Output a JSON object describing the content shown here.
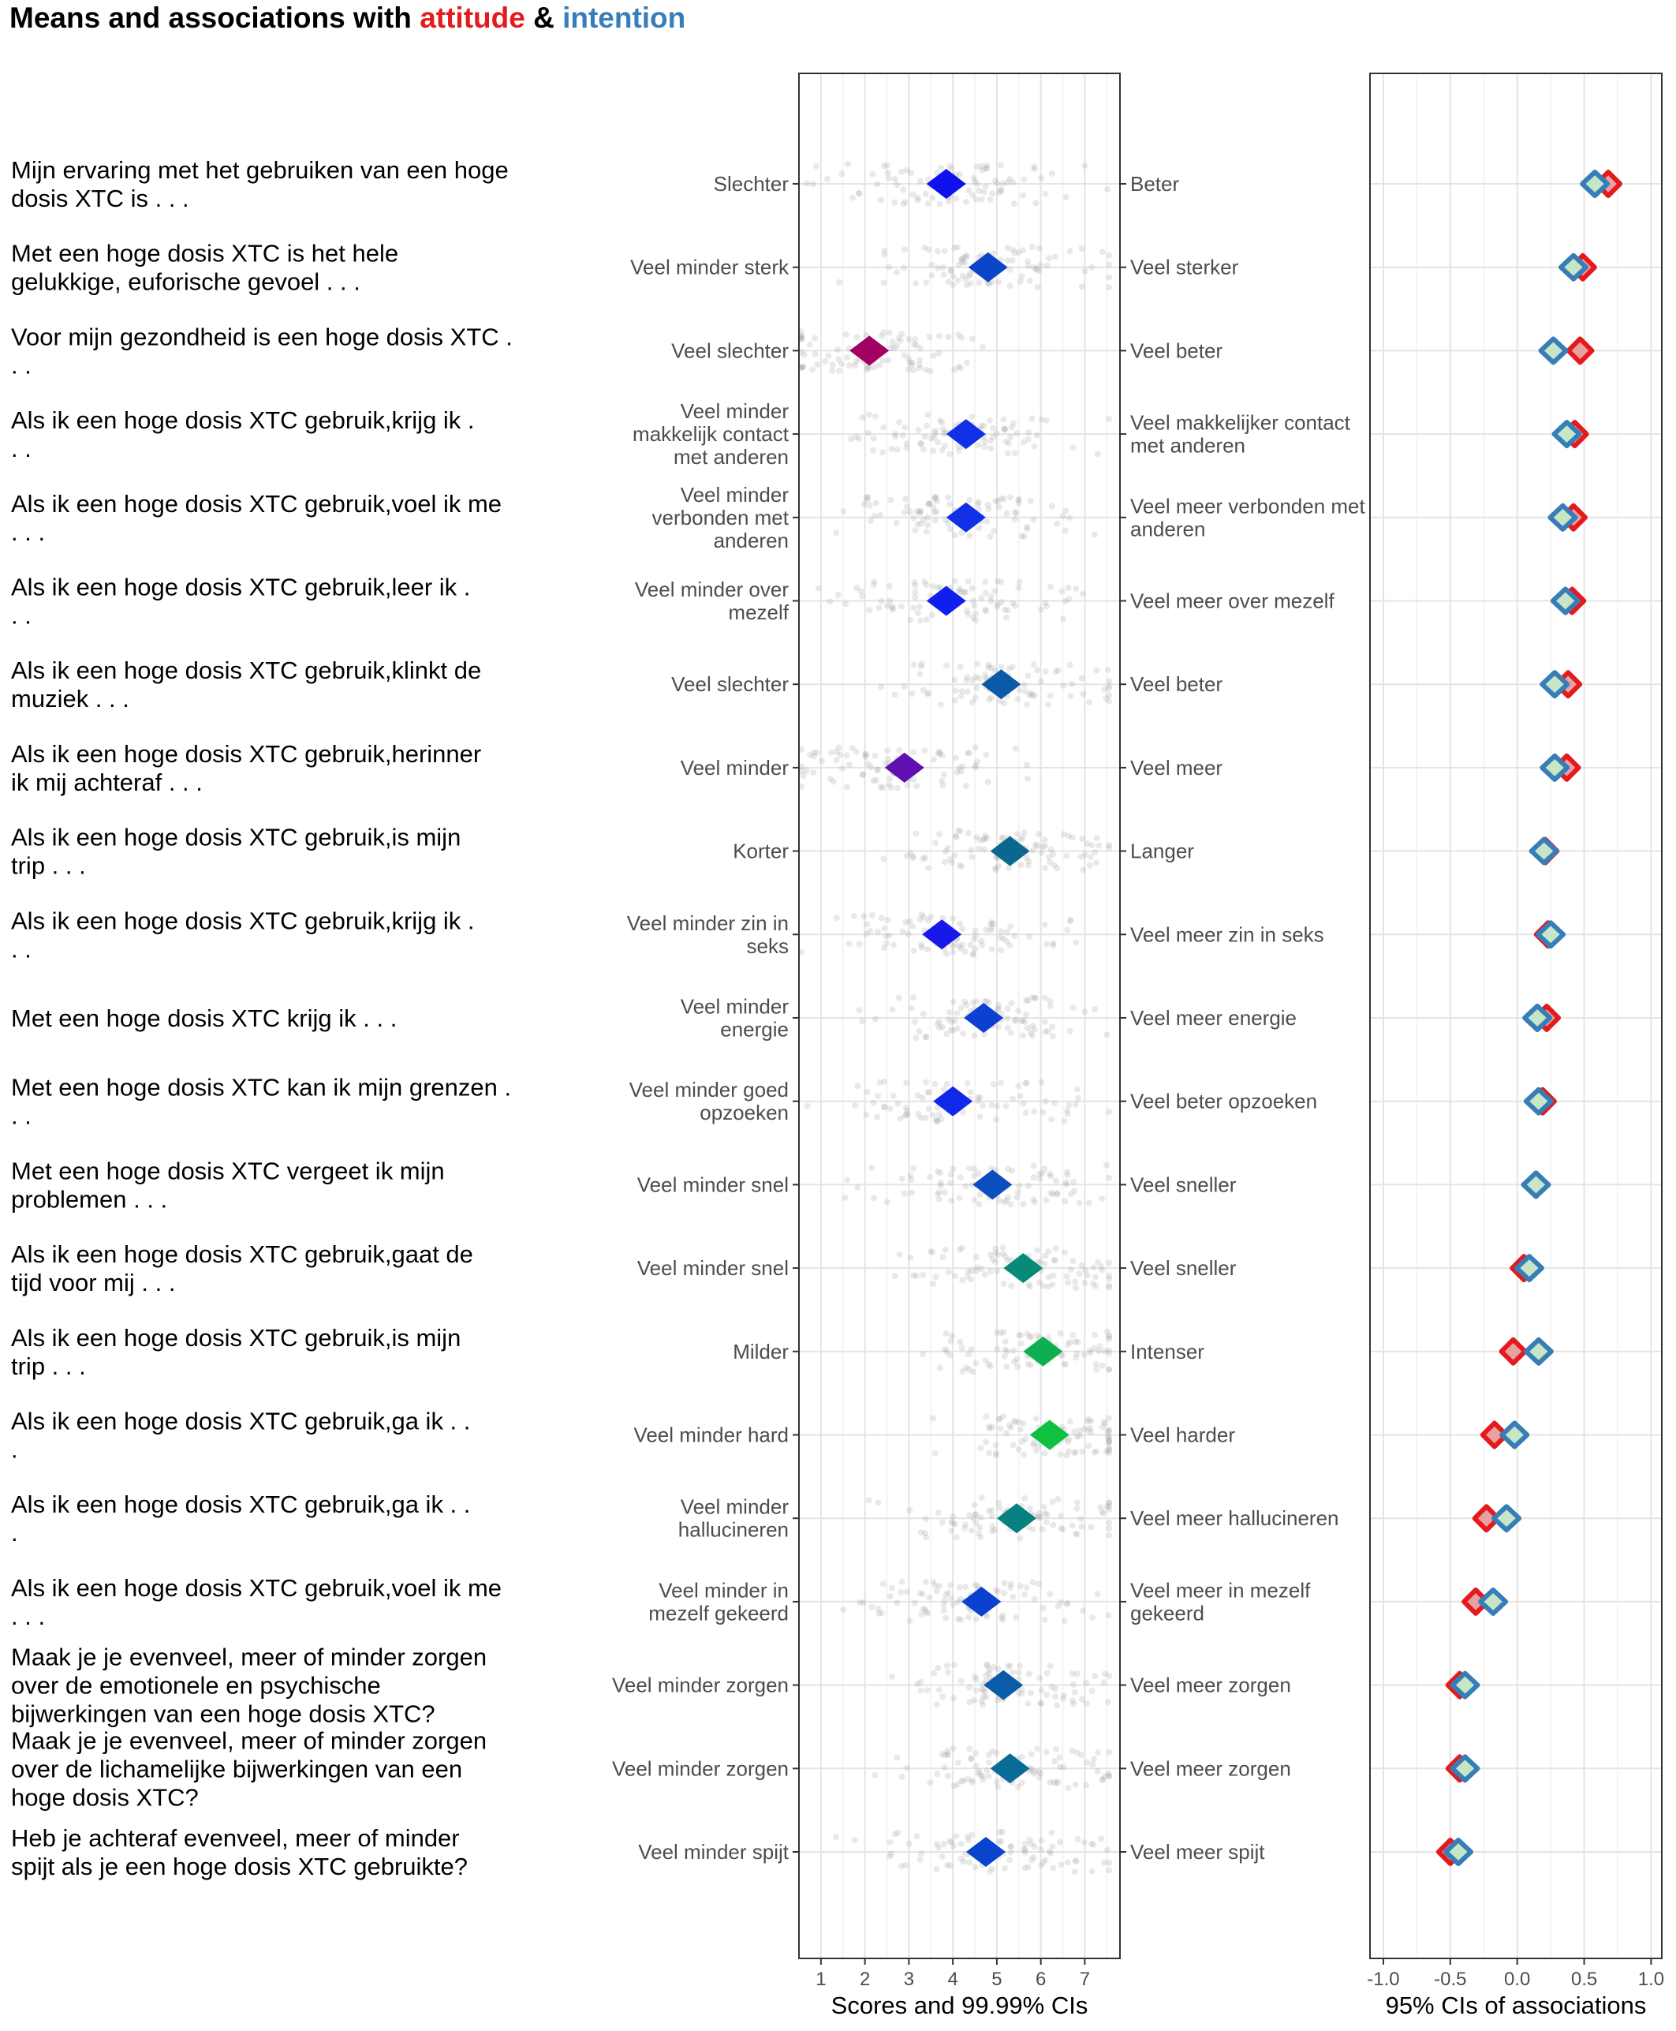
{
  "title": {
    "prefix": "Means and associations with ",
    "attitude": "attitude",
    "amp": " & ",
    "intention": "intention",
    "attitude_color": "#e41a1c",
    "intention_color": "#377eb8"
  },
  "chart_data": [
    {
      "type": "scatter",
      "panel": "scores",
      "xlabel": "Scores and 99.99% CIs",
      "xlim": [
        0.5,
        7.8
      ],
      "xticks": [
        1,
        2,
        3,
        4,
        5,
        6,
        7
      ],
      "grid": true,
      "items": [
        {
          "label": "Mijn ervaring met het gebruiken van een hoge dosis XTC is . . .",
          "left_anchor": "Slechter",
          "right_anchor": "Beter",
          "mean": 3.85,
          "color": "#1010ee"
        },
        {
          "label": "Met een hoge dosis XTC is het hele gelukkige, euforische gevoel . . .",
          "left_anchor": "Veel minder sterk",
          "right_anchor": "Veel sterker",
          "mean": 4.8,
          "color": "#0b46c8"
        },
        {
          "label": "Voor mijn gezondheid is een hoge dosis XTC . . .",
          "left_anchor": "Veel slechter",
          "right_anchor": "Veel beter",
          "mean": 2.1,
          "color": "#a00060"
        },
        {
          "label": "Als ik een hoge dosis XTC gebruik,krijg ik . . .",
          "left_anchor": "Veel minder makkelijk contact met anderen",
          "right_anchor": "Veel makkelijker contact met anderen",
          "mean": 4.3,
          "color": "#1030e6"
        },
        {
          "label": "Als ik een hoge dosis XTC gebruik,voel ik me . . .",
          "left_anchor": "Veel minder verbonden met anderen",
          "right_anchor": "Veel meer verbonden met anderen",
          "mean": 4.3,
          "color": "#1030e6"
        },
        {
          "label": "Als ik een hoge dosis XTC gebruik,leer ik . . .",
          "left_anchor": "Veel minder over mezelf",
          "right_anchor": "Veel meer over mezelf",
          "mean": 3.85,
          "color": "#1020ec"
        },
        {
          "label": "Als ik een hoge dosis XTC gebruik,klinkt de muziek . . .",
          "left_anchor": "Veel slechter",
          "right_anchor": "Veel beter",
          "mean": 5.1,
          "color": "#0b5aa8"
        },
        {
          "label": "Als ik een hoge dosis XTC gebruik,herinner ik mij achteraf . . .",
          "left_anchor": "Veel minder",
          "right_anchor": "Veel meer",
          "mean": 2.9,
          "color": "#6010b0"
        },
        {
          "label": "Als ik een hoge dosis XTC gebruik,is mijn trip . . .",
          "left_anchor": "Korter",
          "right_anchor": "Langer",
          "mean": 5.3,
          "color": "#0a6890"
        },
        {
          "label": "Als ik een hoge dosis XTC gebruik,krijg ik . . .",
          "left_anchor": "Veel minder zin in seks",
          "right_anchor": "Veel meer zin in seks",
          "mean": 3.75,
          "color": "#1818ec"
        },
        {
          "label": "Met een hoge dosis XTC krijg ik . . .",
          "left_anchor": "Veel minder energie",
          "right_anchor": "Veel meer energie",
          "mean": 4.7,
          "color": "#0b40d0"
        },
        {
          "label": "Met een hoge dosis XTC kan ik mijn grenzen . . .",
          "left_anchor": "Veel minder goed opzoeken",
          "right_anchor": "Veel beter opzoeken",
          "mean": 4.0,
          "color": "#1028ea"
        },
        {
          "label": "Met een hoge dosis XTC vergeet ik mijn problemen . . .",
          "left_anchor": "Veel minder snel",
          "right_anchor": "Veel sneller",
          "mean": 4.9,
          "color": "#0b4ec0"
        },
        {
          "label": "Als ik een hoge dosis XTC gebruik,gaat de tijd voor mij . . .",
          "left_anchor": "Veel minder snel",
          "right_anchor": "Veel sneller",
          "mean": 5.6,
          "color": "#088a78"
        },
        {
          "label": "Als ik een hoge dosis XTC gebruik,is mijn trip . . .",
          "left_anchor": "Milder",
          "right_anchor": "Intenser",
          "mean": 6.05,
          "color": "#0cb050"
        },
        {
          "label": "Als ik een hoge dosis XTC gebruik,ga ik . . .",
          "left_anchor": "Veel minder hard",
          "right_anchor": "Veel harder",
          "mean": 6.2,
          "color": "#10c040"
        },
        {
          "label": "Als ik een hoge dosis XTC gebruik,ga ik . . .",
          "left_anchor": "Veel minder hallucineren",
          "right_anchor": "Veel meer hallucineren",
          "mean": 5.45,
          "color": "#088080"
        },
        {
          "label": "Als ik een hoge dosis XTC gebruik,voel ik me . . .",
          "left_anchor": "Veel minder in mezelf gekeerd",
          "right_anchor": "Veel meer in mezelf gekeerd",
          "mean": 4.65,
          "color": "#0b40d0"
        },
        {
          "label": "Maak je je evenveel, meer of minder zorgen over de emotionele en psychische bijwerkingen van een hoge dosis XTC?",
          "left_anchor": "Veel minder zorgen",
          "right_anchor": "Veel meer zorgen",
          "mean": 5.15,
          "color": "#0b5ca8"
        },
        {
          "label": "Maak je je evenveel, meer of minder zorgen over de lichamelijke bijwerkingen van een hoge dosis XTC?",
          "left_anchor": "Veel minder zorgen",
          "right_anchor": "Veel meer zorgen",
          "mean": 5.3,
          "color": "#0a6a98"
        },
        {
          "label": "Heb je achteraf evenveel, meer of minder spijt als je een hoge dosis XTC gebruikte?",
          "left_anchor": "Veel minder spijt",
          "right_anchor": "Veel meer spijt",
          "mean": 4.75,
          "color": "#0b44cc"
        }
      ]
    },
    {
      "type": "scatter",
      "panel": "associations",
      "xlabel": "95% CIs of associations",
      "xlim": [
        -1.1,
        1.08
      ],
      "xticks": [
        -1.0,
        -0.5,
        0.0,
        0.5,
        1.0
      ],
      "tick_labels": [
        "-1.0",
        "-0.5",
        "0.0",
        "0.5",
        "1.0"
      ],
      "grid": true,
      "series": [
        {
          "name": "attitude",
          "color": "#e41a1c",
          "values": [
            0.68,
            0.49,
            0.47,
            0.43,
            0.42,
            0.41,
            0.38,
            0.37,
            0.21,
            0.23,
            0.22,
            0.19,
            0.14,
            0.05,
            -0.03,
            -0.17,
            -0.23,
            -0.31,
            -0.43,
            -0.43,
            -0.5
          ]
        },
        {
          "name": "intention",
          "color": "#377eb8",
          "values": [
            0.58,
            0.42,
            0.27,
            0.37,
            0.34,
            0.36,
            0.28,
            0.28,
            0.2,
            0.25,
            0.15,
            0.16,
            0.14,
            0.09,
            0.16,
            -0.02,
            -0.08,
            -0.18,
            -0.39,
            -0.39,
            -0.44
          ]
        }
      ]
    }
  ]
}
